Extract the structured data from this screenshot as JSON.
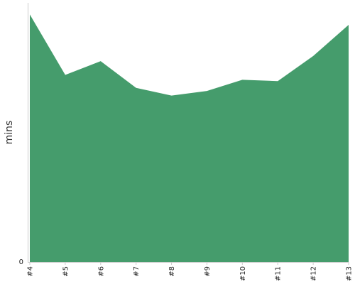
{
  "chart_data": {
    "type": "area",
    "title": "",
    "xlabel": "",
    "ylabel": "mins",
    "categories": [
      "#4",
      "#5",
      "#6",
      "#7",
      "#8",
      "#9",
      "#10",
      "#11",
      "#12",
      "#13"
    ],
    "series": [
      {
        "values": [
          95.5,
          72.2,
          77.5,
          67.2,
          64.2,
          66.0,
          70.3,
          69.8,
          79.5,
          91.5
        ]
      }
    ],
    "ylim": [
      0,
      100
    ],
    "y_ticks": [
      "0"
    ],
    "grid": false,
    "legend": "none",
    "area_color": "#459c6c",
    "axis_color": "#cccccc"
  }
}
